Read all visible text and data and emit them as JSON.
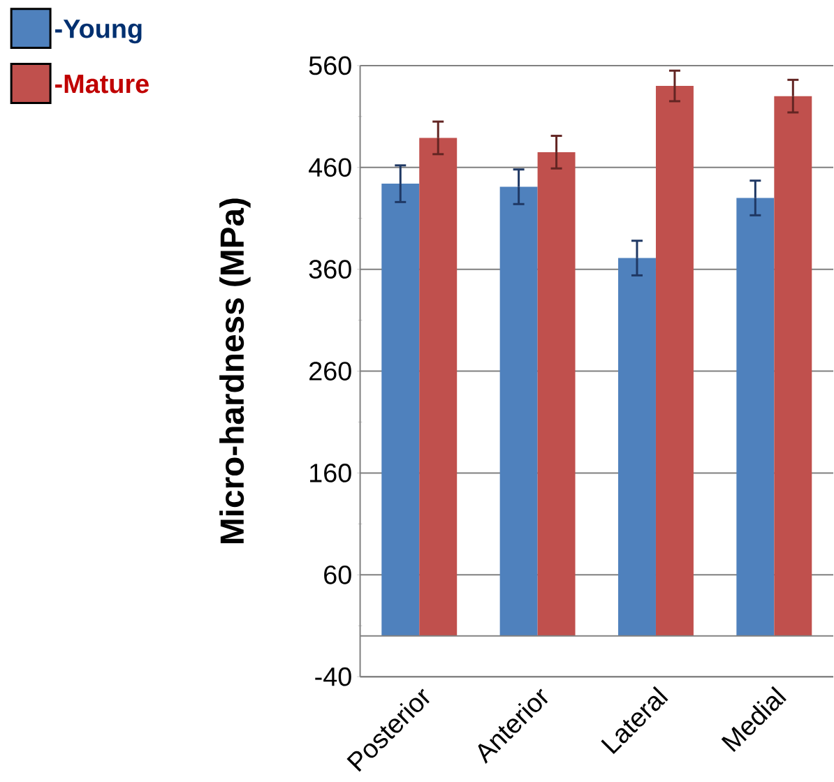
{
  "chart_data": {
    "type": "bar",
    "ylabel": "Micro-hardness (MPa)",
    "categories": [
      "Posterior",
      "Anterior",
      "Lateral",
      "Medial"
    ],
    "series": [
      {
        "name": "-Young",
        "color": "#4f81bd",
        "values": [
          444,
          441,
          371,
          430
        ],
        "errors": [
          18,
          17,
          17,
          17
        ]
      },
      {
        "name": "-Mature",
        "color": "#c0504d",
        "values": [
          489,
          475,
          540,
          530
        ],
        "errors": [
          16,
          16,
          15,
          16
        ]
      }
    ],
    "ylim": [
      -40,
      560
    ],
    "yticks": [
      -40,
      60,
      160,
      260,
      360,
      460,
      560
    ],
    "ref_lines": [
      {
        "axis": "y",
        "value": 0
      }
    ],
    "grid": "y",
    "legend": "top left"
  }
}
